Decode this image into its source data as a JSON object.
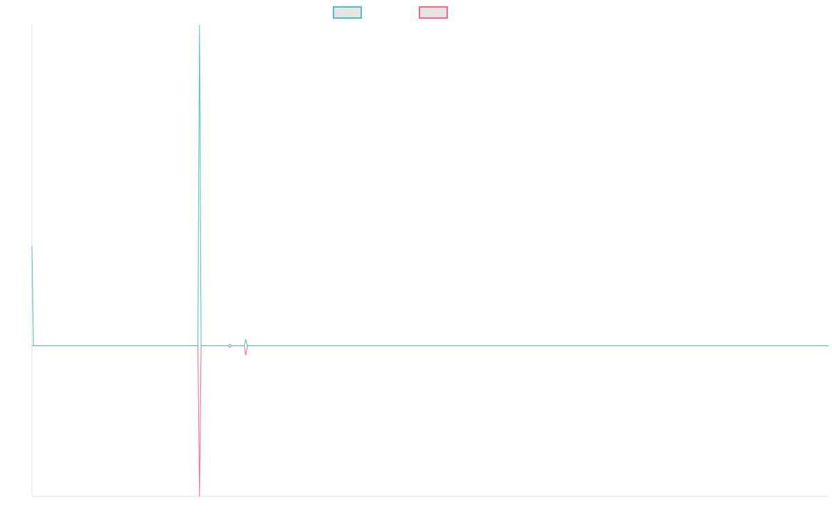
{
  "chart_data": {
    "type": "line",
    "title": "",
    "xlabel": "",
    "ylabel": "",
    "grid": false,
    "legend_placement": "top-center",
    "x_count": 500,
    "xlim": [
      0,
      499
    ],
    "ylim": [
      -47,
      100
    ],
    "default_value": 0,
    "series": [
      {
        "name": "",
        "color": "#4bc0c0",
        "points": [
          [
            0,
            31
          ],
          [
            1,
            0
          ],
          [
            104,
            0
          ],
          [
            105,
            100
          ],
          [
            106,
            0
          ],
          [
            123,
            0
          ],
          [
            124,
            0.5
          ],
          [
            125,
            0
          ],
          [
            133,
            0
          ],
          [
            134,
            2
          ],
          [
            135,
            0
          ]
        ]
      },
      {
        "name": "",
        "color": "#ff6384",
        "points": [
          [
            104,
            0
          ],
          [
            105,
            -47
          ],
          [
            106,
            0
          ],
          [
            123,
            0
          ],
          [
            124,
            -0.5
          ],
          [
            125,
            0
          ],
          [
            133,
            0
          ],
          [
            134,
            -3
          ],
          [
            135,
            0
          ]
        ]
      }
    ]
  }
}
